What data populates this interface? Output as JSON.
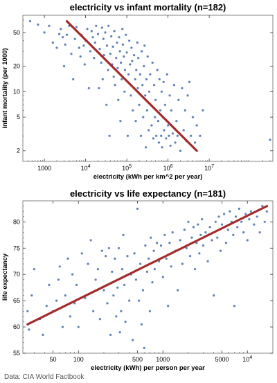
{
  "source": "Data: CIA World Factbook",
  "colors": {
    "point": "#5b7fb8",
    "fit_line": "#a52a2a",
    "plot_background": "#ffffff",
    "frame": "#666666"
  },
  "chart_data": [
    {
      "type": "scatter",
      "title": "electricity vs infant mortality (n=182)",
      "xlabel": "electricity (kWh per km^2 per year)",
      "ylabel": "infant mortality (per 1000)",
      "x_scale": "log",
      "y_scale": "log",
      "xlim": [
        300,
        350000000
      ],
      "ylim": [
        1.5,
        80
      ],
      "x_ticks": [
        {
          "value": 1000,
          "label": "1000"
        },
        {
          "value": 10000,
          "label": "10^4"
        },
        {
          "value": 100000,
          "label": "10^5"
        },
        {
          "value": 1000000,
          "label": "10^6"
        },
        {
          "value": 10000000,
          "label": "10^7"
        }
      ],
      "y_ticks": [
        {
          "value": 2,
          "label": "2"
        },
        {
          "value": 5,
          "label": "5"
        },
        {
          "value": 10,
          "label": "10"
        },
        {
          "value": 20,
          "label": "20"
        },
        {
          "value": 50,
          "label": "50"
        }
      ],
      "grid": false,
      "fit_line": {
        "x": [
          3500,
          5000000
        ],
        "y": [
          68,
          2
        ]
      },
      "points": [
        [
          450,
          68
        ],
        [
          700,
          62
        ],
        [
          1000,
          50
        ],
        [
          1300,
          60
        ],
        [
          1600,
          38
        ],
        [
          2000,
          33
        ],
        [
          2300,
          48
        ],
        [
          2500,
          55
        ],
        [
          2800,
          44
        ],
        [
          3000,
          20
        ],
        [
          3200,
          36
        ],
        [
          3500,
          47
        ],
        [
          4000,
          60
        ],
        [
          4500,
          28
        ],
        [
          5000,
          14
        ],
        [
          5500,
          42
        ],
        [
          6000,
          58
        ],
        [
          7000,
          33
        ],
        [
          7500,
          26
        ],
        [
          8000,
          47
        ],
        [
          9000,
          35
        ],
        [
          9500,
          21
        ],
        [
          10000,
          40
        ],
        [
          11000,
          55
        ],
        [
          12000,
          11
        ],
        [
          13000,
          30
        ],
        [
          14000,
          52
        ],
        [
          15000,
          44
        ],
        [
          16000,
          25
        ],
        [
          17000,
          38
        ],
        [
          18000,
          60
        ],
        [
          20000,
          48
        ],
        [
          21000,
          11
        ],
        [
          22000,
          32
        ],
        [
          24000,
          22
        ],
        [
          25000,
          57
        ],
        [
          26000,
          14
        ],
        [
          27000,
          42
        ],
        [
          28000,
          27
        ],
        [
          30000,
          50
        ],
        [
          32000,
          7
        ],
        [
          33000,
          35
        ],
        [
          35000,
          18
        ],
        [
          36000,
          60
        ],
        [
          38000,
          3
        ],
        [
          40000,
          28
        ],
        [
          42000,
          45
        ],
        [
          44000,
          21
        ],
        [
          46000,
          34
        ],
        [
          48000,
          15
        ],
        [
          50000,
          52
        ],
        [
          52000,
          12
        ],
        [
          55000,
          25
        ],
        [
          58000,
          38
        ],
        [
          60000,
          19
        ],
        [
          62000,
          8
        ],
        [
          65000,
          44
        ],
        [
          68000,
          30
        ],
        [
          70000,
          4.5
        ],
        [
          72000,
          22
        ],
        [
          75000,
          14
        ],
        [
          78000,
          55
        ],
        [
          80000,
          36
        ],
        [
          85000,
          26
        ],
        [
          88000,
          10
        ],
        [
          90000,
          18
        ],
        [
          95000,
          47
        ],
        [
          100000,
          29
        ],
        [
          105000,
          3
        ],
        [
          110000,
          16
        ],
        [
          115000,
          40
        ],
        [
          120000,
          21
        ],
        [
          125000,
          9
        ],
        [
          130000,
          33
        ],
        [
          135000,
          23
        ],
        [
          140000,
          6
        ],
        [
          150000,
          27
        ],
        [
          160000,
          14
        ],
        [
          165000,
          4.5
        ],
        [
          170000,
          18
        ],
        [
          180000,
          38
        ],
        [
          185000,
          11
        ],
        [
          190000,
          25
        ],
        [
          200000,
          7
        ],
        [
          210000,
          16
        ],
        [
          220000,
          3
        ],
        [
          230000,
          30
        ],
        [
          240000,
          12
        ],
        [
          250000,
          5
        ],
        [
          260000,
          20
        ],
        [
          270000,
          35
        ],
        [
          280000,
          9
        ],
        [
          290000,
          2.2
        ],
        [
          300000,
          14
        ],
        [
          310000,
          6
        ],
        [
          320000,
          26
        ],
        [
          340000,
          3.5
        ],
        [
          350000,
          10
        ],
        [
          370000,
          16
        ],
        [
          380000,
          7
        ],
        [
          400000,
          4
        ],
        [
          420000,
          22
        ],
        [
          440000,
          2.8
        ],
        [
          460000,
          12
        ],
        [
          480000,
          5
        ],
        [
          500000,
          8
        ],
        [
          520000,
          3
        ],
        [
          550000,
          18
        ],
        [
          580000,
          4.5
        ],
        [
          600000,
          2.5
        ],
        [
          620000,
          14
        ],
        [
          650000,
          6
        ],
        [
          680000,
          3
        ],
        [
          700000,
          10
        ],
        [
          720000,
          2.2
        ],
        [
          750000,
          5
        ],
        [
          780000,
          13
        ],
        [
          800000,
          3.5
        ],
        [
          850000,
          7
        ],
        [
          900000,
          2.8
        ],
        [
          950000,
          16
        ],
        [
          1000000,
          4
        ],
        [
          1050000,
          3
        ],
        [
          1100000,
          9
        ],
        [
          1150000,
          2.3
        ],
        [
          1200000,
          6
        ],
        [
          1300000,
          3.2
        ],
        [
          1400000,
          12
        ],
        [
          1500000,
          2.5
        ],
        [
          1600000,
          4.5
        ],
        [
          1700000,
          3
        ],
        [
          1800000,
          8
        ],
        [
          2000000,
          2
        ],
        [
          2200000,
          11
        ],
        [
          2400000,
          3.5
        ],
        [
          2600000,
          6
        ],
        [
          2800000,
          2.6
        ],
        [
          3000000,
          9
        ],
        [
          3300000,
          13
        ],
        [
          3600000,
          3
        ],
        [
          4000000,
          5
        ],
        [
          4500000,
          2.5
        ],
        [
          5000000,
          4
        ],
        [
          6000000,
          3
        ],
        [
          7000000,
          6
        ],
        [
          300000000,
          2.7
        ]
      ]
    },
    {
      "type": "scatter",
      "title": "electricity vs life expectancy (n=181)",
      "xlabel": "electricity (kWh) per person per year",
      "ylabel": "life expectancy",
      "x_scale": "log",
      "y_scale": "linear",
      "xlim": [
        22,
        20000
      ],
      "ylim": [
        55,
        84
      ],
      "x_ticks": [
        {
          "value": 50,
          "label": "50"
        },
        {
          "value": 100,
          "label": "100"
        },
        {
          "value": 500,
          "label": "500"
        },
        {
          "value": 1000,
          "label": "1000"
        },
        {
          "value": 5000,
          "label": "5000"
        },
        {
          "value": 10000,
          "label": "10^4"
        }
      ],
      "y_ticks": [
        {
          "value": 55,
          "label": "55"
        },
        {
          "value": 60,
          "label": "60"
        },
        {
          "value": 65,
          "label": "65"
        },
        {
          "value": 70,
          "label": "70"
        },
        {
          "value": 75,
          "label": "75"
        },
        {
          "value": 80,
          "label": "80"
        }
      ],
      "grid": false,
      "fit_line": {
        "x": [
          25,
          17000
        ],
        "y": [
          60.5,
          83
        ]
      },
      "points": [
        [
          25,
          63
        ],
        [
          26,
          59.5
        ],
        [
          28,
          66
        ],
        [
          30,
          71
        ],
        [
          35,
          61.5
        ],
        [
          38,
          58.5
        ],
        [
          42,
          64
        ],
        [
          45,
          68
        ],
        [
          50,
          63
        ],
        [
          55,
          65
        ],
        [
          58,
          69
        ],
        [
          60,
          71.5
        ],
        [
          65,
          60
        ],
        [
          70,
          66
        ],
        [
          75,
          73
        ],
        [
          80,
          62
        ],
        [
          85,
          70
        ],
        [
          90,
          64.5
        ],
        [
          95,
          68
        ],
        [
          100,
          60
        ],
        [
          110,
          74
        ],
        [
          120,
          65.5
        ],
        [
          130,
          72
        ],
        [
          140,
          76.5
        ],
        [
          150,
          63
        ],
        [
          160,
          69
        ],
        [
          170,
          71
        ],
        [
          180,
          61.5
        ],
        [
          190,
          74.5
        ],
        [
          200,
          67
        ],
        [
          210,
          73.5
        ],
        [
          220,
          64.5
        ],
        [
          230,
          75
        ],
        [
          240,
          58.5
        ],
        [
          250,
          70.5
        ],
        [
          260,
          66
        ],
        [
          270,
          73
        ],
        [
          280,
          62
        ],
        [
          290,
          67.5
        ],
        [
          300,
          75
        ],
        [
          310,
          59
        ],
        [
          320,
          63
        ],
        [
          330,
          71
        ],
        [
          340,
          77.5
        ],
        [
          350,
          68
        ],
        [
          360,
          61
        ],
        [
          380,
          73.5
        ],
        [
          400,
          65
        ],
        [
          420,
          70
        ],
        [
          440,
          57.5
        ],
        [
          460,
          74
        ],
        [
          480,
          69
        ],
        [
          500,
          82.5
        ],
        [
          520,
          65
        ],
        [
          540,
          72
        ],
        [
          560,
          60.5
        ],
        [
          580,
          67
        ],
        [
          600,
          56
        ],
        [
          620,
          75.5
        ],
        [
          650,
          70.5
        ],
        [
          680,
          73
        ],
        [
          700,
          63
        ],
        [
          720,
          77
        ],
        [
          750,
          68.5
        ],
        [
          780,
          74.5
        ],
        [
          800,
          71
        ],
        [
          850,
          76
        ],
        [
          900,
          72.5
        ],
        [
          950,
          75.5
        ],
        [
          1000,
          69.5
        ],
        [
          1050,
          77.5
        ],
        [
          1100,
          73
        ],
        [
          1150,
          64
        ],
        [
          1200,
          76
        ],
        [
          1250,
          71.5
        ],
        [
          1300,
          78
        ],
        [
          1400,
          74.5
        ],
        [
          1500,
          67
        ],
        [
          1600,
          76.5
        ],
        [
          1700,
          72
        ],
        [
          1800,
          78.5
        ],
        [
          1900,
          75
        ],
        [
          2000,
          80
        ],
        [
          2100,
          73.5
        ],
        [
          2200,
          77
        ],
        [
          2300,
          79
        ],
        [
          2400,
          71
        ],
        [
          2500,
          76
        ],
        [
          2600,
          79.5
        ],
        [
          2700,
          74
        ],
        [
          2800,
          77.5
        ],
        [
          2900,
          80.5
        ],
        [
          3000,
          75.5
        ],
        [
          3200,
          78
        ],
        [
          3400,
          72.5
        ],
        [
          3600,
          79
        ],
        [
          3800,
          76.5
        ],
        [
          4000,
          66
        ],
        [
          4200,
          80
        ],
        [
          4400,
          77
        ],
        [
          4600,
          81
        ],
        [
          4800,
          74.5
        ],
        [
          5000,
          79.5
        ],
        [
          5300,
          81.5
        ],
        [
          5600,
          76
        ],
        [
          5900,
          78.5
        ],
        [
          6200,
          82
        ],
        [
          6500,
          80
        ],
        [
          6800,
          77.5
        ],
        [
          7000,
          64
        ],
        [
          7300,
          81
        ],
        [
          7600,
          79
        ],
        [
          8000,
          82.5
        ],
        [
          8500,
          80
        ],
        [
          9000,
          78
        ],
        [
          9500,
          81.5
        ],
        [
          10000,
          76.5
        ],
        [
          10500,
          80.5
        ],
        [
          11000,
          82
        ],
        [
          12000,
          79.5
        ],
        [
          13000,
          81
        ],
        [
          14000,
          78
        ],
        [
          15000,
          83
        ],
        [
          16000,
          80
        ],
        [
          17000,
          82
        ]
      ]
    }
  ]
}
